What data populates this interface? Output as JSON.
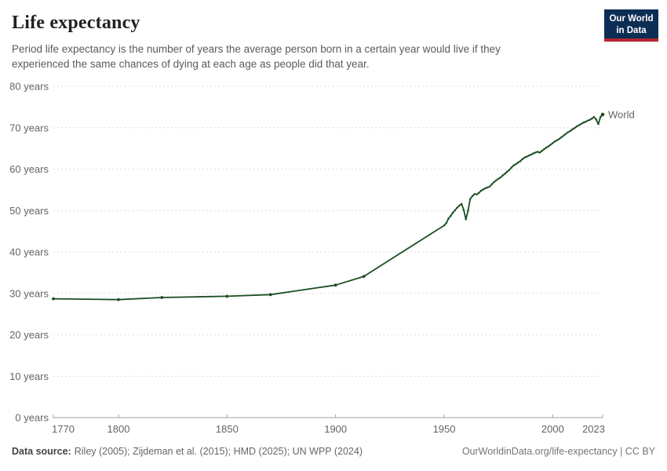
{
  "header": {
    "title": "Life expectancy",
    "subtitle_line1": "Period life expectancy is the number of years the average person born in a certain year would live if they",
    "subtitle_line2": "experienced the same chances of dying at each age as people did that year."
  },
  "logo": {
    "line1": "Our World",
    "line2": "in Data",
    "bg_color": "#0d2e54",
    "accent_color": "#b6252f"
  },
  "footer": {
    "data_source_label": "Data source:",
    "data_source_text": "Riley (2005); Zijdeman et al. (2015); HMD (2025); UN WPP (2024)",
    "right_text": "OurWorldinData.org/life-expectancy | CC BY"
  },
  "chart_data": {
    "type": "line",
    "title": "Life expectancy",
    "xlabel": "",
    "ylabel": "",
    "xlim": [
      1770,
      2023
    ],
    "ylim": [
      0,
      80
    ],
    "x_ticks": [
      1770,
      1800,
      1850,
      1900,
      1950,
      2000,
      2023
    ],
    "y_ticks": [
      0,
      10,
      20,
      30,
      40,
      50,
      60,
      70,
      80
    ],
    "y_tick_suffix": " years",
    "grid": "horizontal-dashed",
    "grid_color": "#dcdcdc",
    "axis_color": "#a1a1a1",
    "tick_label_color": "#646464",
    "annual_from": 1950,
    "end_label": "World",
    "series": [
      {
        "name": "World",
        "color": "#1b4e22",
        "points": [
          [
            1770,
            28.7
          ],
          [
            1800,
            28.5
          ],
          [
            1820,
            29.0
          ],
          [
            1850,
            29.3
          ],
          [
            1870,
            29.7
          ],
          [
            1900,
            32.0
          ],
          [
            1913,
            34.1
          ],
          [
            1950,
            46.4
          ],
          [
            1951,
            47.0
          ],
          [
            1952,
            48.1
          ],
          [
            1953,
            48.7
          ],
          [
            1954,
            49.5
          ],
          [
            1955,
            50.1
          ],
          [
            1956,
            50.7
          ],
          [
            1957,
            51.2
          ],
          [
            1958,
            51.6
          ],
          [
            1959,
            50.2
          ],
          [
            1960,
            47.9
          ],
          [
            1961,
            50.0
          ],
          [
            1962,
            52.8
          ],
          [
            1963,
            53.5
          ],
          [
            1964,
            54.0
          ],
          [
            1965,
            53.9
          ],
          [
            1966,
            54.3
          ],
          [
            1967,
            54.8
          ],
          [
            1968,
            55.1
          ],
          [
            1969,
            55.4
          ],
          [
            1970,
            55.6
          ],
          [
            1971,
            55.8
          ],
          [
            1972,
            56.4
          ],
          [
            1973,
            56.9
          ],
          [
            1974,
            57.3
          ],
          [
            1975,
            57.7
          ],
          [
            1976,
            58.0
          ],
          [
            1977,
            58.5
          ],
          [
            1978,
            58.9
          ],
          [
            1979,
            59.4
          ],
          [
            1980,
            59.8
          ],
          [
            1981,
            60.4
          ],
          [
            1982,
            60.9
          ],
          [
            1983,
            61.2
          ],
          [
            1984,
            61.6
          ],
          [
            1985,
            61.9
          ],
          [
            1986,
            62.4
          ],
          [
            1987,
            62.8
          ],
          [
            1988,
            63.0
          ],
          [
            1989,
            63.3
          ],
          [
            1990,
            63.5
          ],
          [
            1991,
            63.8
          ],
          [
            1992,
            64.0
          ],
          [
            1993,
            64.2
          ],
          [
            1994,
            64.0
          ],
          [
            1995,
            64.4
          ],
          [
            1996,
            64.8
          ],
          [
            1997,
            65.2
          ],
          [
            1998,
            65.5
          ],
          [
            1999,
            65.9
          ],
          [
            2000,
            66.3
          ],
          [
            2001,
            66.7
          ],
          [
            2002,
            67.0
          ],
          [
            2003,
            67.3
          ],
          [
            2004,
            67.7
          ],
          [
            2005,
            68.1
          ],
          [
            2006,
            68.5
          ],
          [
            2007,
            68.9
          ],
          [
            2008,
            69.2
          ],
          [
            2009,
            69.6
          ],
          [
            2010,
            69.9
          ],
          [
            2011,
            70.3
          ],
          [
            2012,
            70.6
          ],
          [
            2013,
            70.9
          ],
          [
            2014,
            71.2
          ],
          [
            2015,
            71.4
          ],
          [
            2016,
            71.7
          ],
          [
            2017,
            71.9
          ],
          [
            2018,
            72.2
          ],
          [
            2019,
            72.6
          ],
          [
            2020,
            72.0
          ],
          [
            2021,
            70.9
          ],
          [
            2022,
            72.6
          ],
          [
            2023,
            73.2
          ]
        ]
      }
    ]
  }
}
